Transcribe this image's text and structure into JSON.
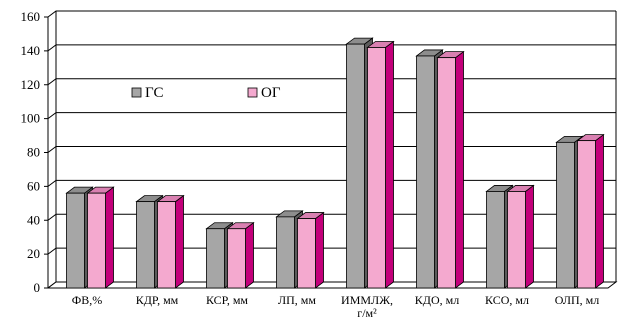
{
  "chart_data": {
    "type": "bar",
    "title": "",
    "xlabel": "",
    "ylabel": "",
    "ylim": [
      0,
      160
    ],
    "yticks": [
      0,
      20,
      40,
      60,
      80,
      100,
      120,
      140,
      160
    ],
    "grid": true,
    "legend_position": "top-left",
    "categories": [
      "ФВ,%",
      "КДР, мм",
      "КСР, мм",
      "ЛП, мм",
      "ИММЛЖ, г/м²",
      "КДО, мл",
      "КСО, мл",
      "ОЛП, мл"
    ],
    "series": [
      {
        "name": "ГС",
        "color": "#a6a6a6",
        "values": [
          56,
          51,
          35,
          42,
          144,
          137,
          57,
          86
        ]
      },
      {
        "name": "ОГ",
        "color": "#f4a9cf",
        "values": [
          56,
          51,
          35,
          41,
          142,
          136,
          57,
          87
        ]
      }
    ]
  }
}
